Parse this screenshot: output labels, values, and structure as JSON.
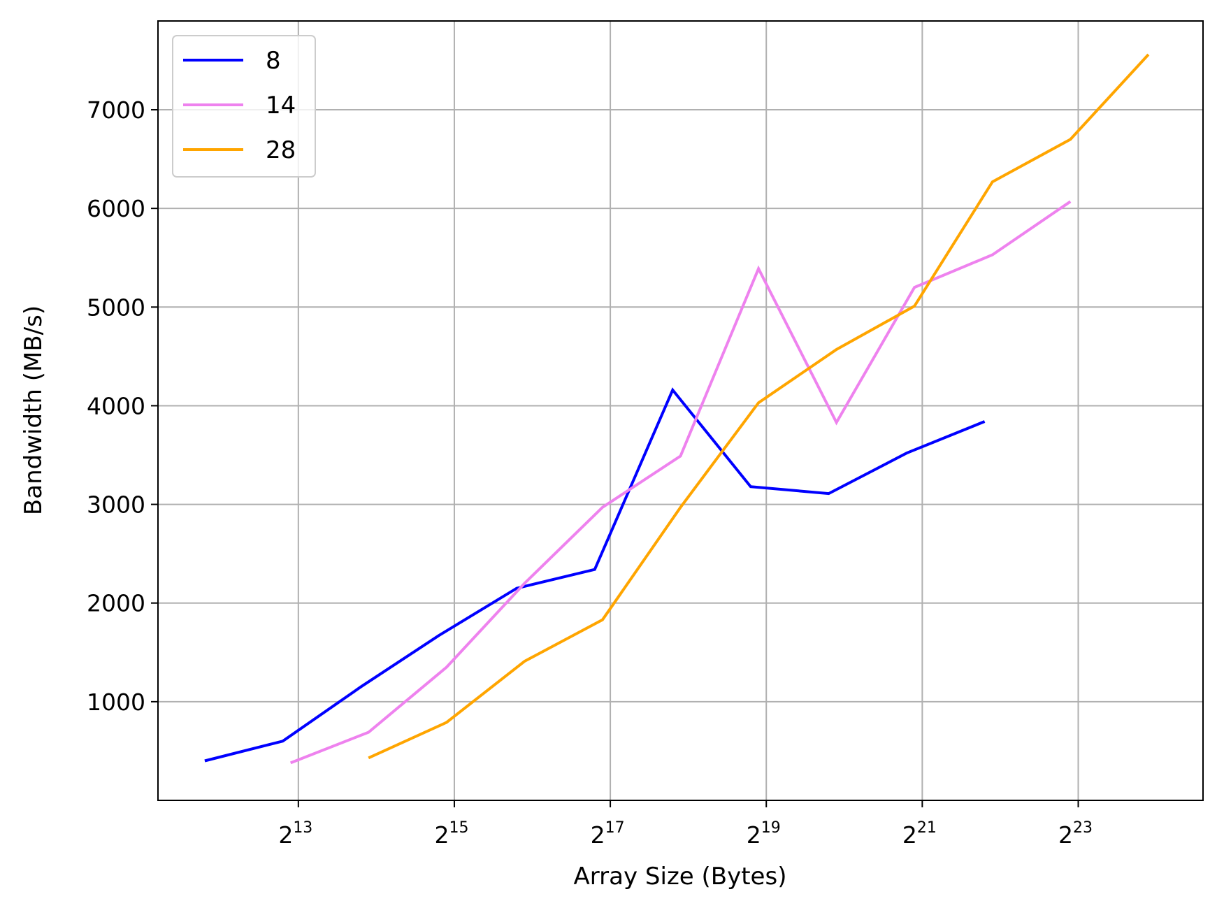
{
  "chart_data": {
    "type": "line",
    "title": "",
    "xlabel": "Array Size (Bytes)",
    "ylabel": "Bandwidth (MB/s)",
    "xscale": "log2",
    "x_exponent_range": [
      11.2,
      24.6
    ],
    "ylim": [
      0,
      7900
    ],
    "x_ticks": [
      {
        "base": "2",
        "exp": "13",
        "value": 13
      },
      {
        "base": "2",
        "exp": "15",
        "value": 15
      },
      {
        "base": "2",
        "exp": "17",
        "value": 17
      },
      {
        "base": "2",
        "exp": "19",
        "value": 19
      },
      {
        "base": "2",
        "exp": "21",
        "value": 21
      },
      {
        "base": "2",
        "exp": "23",
        "value": 23
      }
    ],
    "y_ticks": [
      "1000",
      "2000",
      "3000",
      "4000",
      "5000",
      "6000",
      "7000"
    ],
    "grid": true,
    "legend_position": "top-left",
    "series": [
      {
        "name": "8",
        "color": "#0000ff",
        "x_exp": [
          11.8,
          12.8,
          13.8,
          14.8,
          15.8,
          16.8,
          17.8,
          18.8,
          19.8,
          20.8,
          21.8
        ],
        "values": [
          400,
          600,
          1150,
          1670,
          2150,
          2340,
          4160,
          3180,
          3110,
          3520,
          3840
        ]
      },
      {
        "name": "14",
        "color": "#ee82ee",
        "x_exp": [
          12.9,
          13.9,
          14.9,
          15.9,
          16.9,
          17.9,
          18.9,
          19.9,
          20.9,
          21.9,
          22.9
        ],
        "values": [
          380,
          690,
          1350,
          2200,
          2970,
          3490,
          5390,
          3830,
          5200,
          5530,
          6070
        ]
      },
      {
        "name": "28",
        "color": "#ffa500",
        "x_exp": [
          13.9,
          14.9,
          15.9,
          16.9,
          17.9,
          18.9,
          19.9,
          20.9,
          21.9,
          22.9,
          23.9
        ],
        "values": [
          430,
          790,
          1410,
          1830,
          2970,
          4030,
          4570,
          5010,
          6270,
          6700,
          7560
        ]
      }
    ]
  }
}
